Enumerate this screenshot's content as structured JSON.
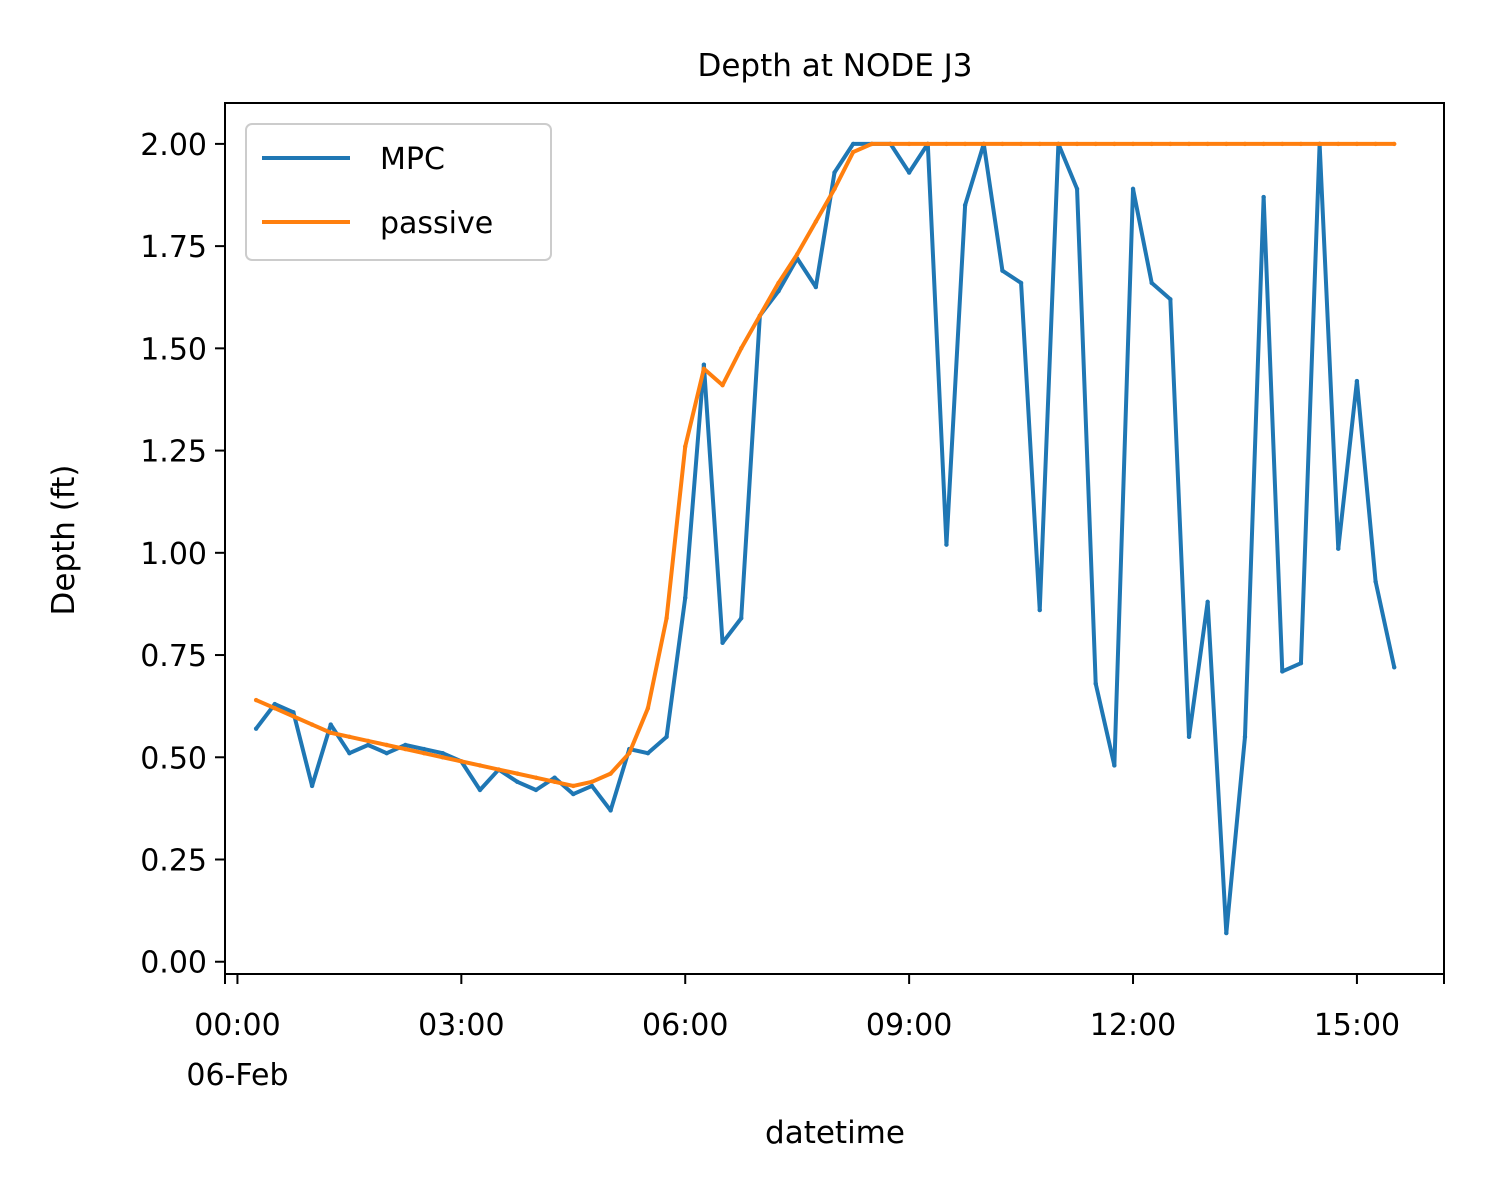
{
  "chart_data": {
    "type": "line",
    "title": "Depth at NODE J3",
    "xlabel": "datetime",
    "ylabel": "Depth (ft)",
    "xlim": [
      "2018-02-05T23:50",
      "2018-02-06T16:10"
    ],
    "ylim": [
      -0.03,
      2.1
    ],
    "x_ticks": [
      {
        "t": "2018-02-06T00:00",
        "label": "00:00",
        "sublabel": "06-Feb"
      },
      {
        "t": "2018-02-06T03:00",
        "label": "03:00"
      },
      {
        "t": "2018-02-06T06:00",
        "label": "06:00"
      },
      {
        "t": "2018-02-06T09:00",
        "label": "09:00"
      },
      {
        "t": "2018-02-06T12:00",
        "label": "12:00"
      },
      {
        "t": "2018-02-06T15:00",
        "label": "15:00"
      }
    ],
    "y_ticks": [
      {
        "v": 0.0,
        "label": "0.00"
      },
      {
        "v": 0.25,
        "label": "0.25"
      },
      {
        "v": 0.5,
        "label": "0.50"
      },
      {
        "v": 0.75,
        "label": "0.75"
      },
      {
        "v": 1.0,
        "label": "1.00"
      },
      {
        "v": 1.25,
        "label": "1.25"
      },
      {
        "v": 1.5,
        "label": "1.50"
      },
      {
        "v": 1.75,
        "label": "1.75"
      },
      {
        "v": 2.0,
        "label": "2.00"
      }
    ],
    "grid": false,
    "legend": "upper left",
    "x": [
      "00:15",
      "00:30",
      "00:45",
      "01:00",
      "01:15",
      "01:30",
      "01:45",
      "02:00",
      "02:15",
      "02:30",
      "02:45",
      "03:00",
      "03:15",
      "03:30",
      "03:45",
      "04:00",
      "04:15",
      "04:30",
      "04:45",
      "05:00",
      "05:15",
      "05:30",
      "05:45",
      "06:00",
      "06:15",
      "06:30",
      "06:45",
      "07:00",
      "07:15",
      "07:30",
      "07:45",
      "08:00",
      "08:15",
      "08:30",
      "08:45",
      "09:00",
      "09:15",
      "09:30",
      "09:45",
      "10:00",
      "10:15",
      "10:30",
      "10:45",
      "11:00",
      "11:15",
      "11:30",
      "11:45",
      "12:00",
      "12:15",
      "12:30",
      "12:45",
      "13:00",
      "13:15",
      "13:30",
      "13:45",
      "14:00",
      "14:15",
      "14:30",
      "14:45",
      "15:00",
      "15:15",
      "15:30"
    ],
    "series": [
      {
        "name": "MPC",
        "color": "#1f77b4",
        "values": [
          0.57,
          0.63,
          0.61,
          0.43,
          0.58,
          0.51,
          0.53,
          0.51,
          0.53,
          0.52,
          0.51,
          0.49,
          0.42,
          0.47,
          0.44,
          0.42,
          0.45,
          0.41,
          0.43,
          0.37,
          0.52,
          0.51,
          0.55,
          0.89,
          1.46,
          0.78,
          0.84,
          1.58,
          1.64,
          1.72,
          1.65,
          1.93,
          2.0,
          2.0,
          2.0,
          1.93,
          2.0,
          1.02,
          1.85,
          2.0,
          1.69,
          1.66,
          0.86,
          2.0,
          1.89,
          0.68,
          0.48,
          1.89,
          1.66,
          1.62,
          0.55,
          0.88,
          0.07,
          0.55,
          1.87,
          0.71,
          0.73,
          2.0,
          1.01,
          1.42,
          0.93,
          0.72
        ]
      },
      {
        "name": "passive",
        "color": "#ff7f0e",
        "values": [
          0.64,
          0.62,
          0.6,
          0.58,
          0.56,
          0.55,
          0.54,
          0.53,
          0.52,
          0.51,
          0.5,
          0.49,
          0.48,
          0.47,
          0.46,
          0.45,
          0.44,
          0.43,
          0.44,
          0.46,
          0.51,
          0.62,
          0.84,
          1.26,
          1.45,
          1.41,
          1.5,
          1.58,
          1.66,
          1.73,
          1.81,
          1.89,
          1.98,
          2.0,
          2.0,
          2.0,
          2.0,
          2.0,
          2.0,
          2.0,
          2.0,
          2.0,
          2.0,
          2.0,
          2.0,
          2.0,
          2.0,
          2.0,
          2.0,
          2.0,
          2.0,
          2.0,
          2.0,
          2.0,
          2.0,
          2.0,
          2.0,
          2.0,
          2.0,
          2.0,
          2.0,
          2.0
        ]
      }
    ]
  }
}
